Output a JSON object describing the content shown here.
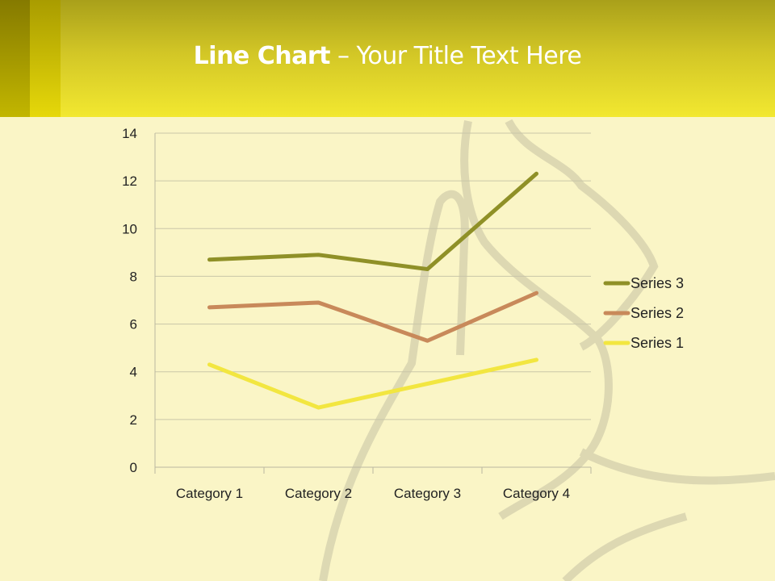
{
  "slide": {
    "title_bold": "Line Chart",
    "title_rest": " – Your Title Text Here"
  },
  "chart_data": {
    "type": "line",
    "stacked": true,
    "title": "",
    "xlabel": "",
    "ylabel": "",
    "categories": [
      "Category 1",
      "Category 2",
      "Category 3",
      "Category 4"
    ],
    "ylim": [
      0,
      14
    ],
    "yticks": [
      "0",
      "2",
      "4",
      "6",
      "8",
      "10",
      "12",
      "14"
    ],
    "grid": true,
    "legend_position": "right",
    "series": [
      {
        "name": "Series 1",
        "values": [
          4.3,
          2.5,
          3.5,
          4.5
        ],
        "color": "#f2e640"
      },
      {
        "name": "Series 2",
        "values": [
          2.4,
          4.4,
          1.8,
          2.8
        ],
        "color": "#c8895a"
      },
      {
        "name": "Series 3",
        "values": [
          2,
          2,
          3,
          5
        ],
        "color": "#8f9027"
      }
    ]
  }
}
